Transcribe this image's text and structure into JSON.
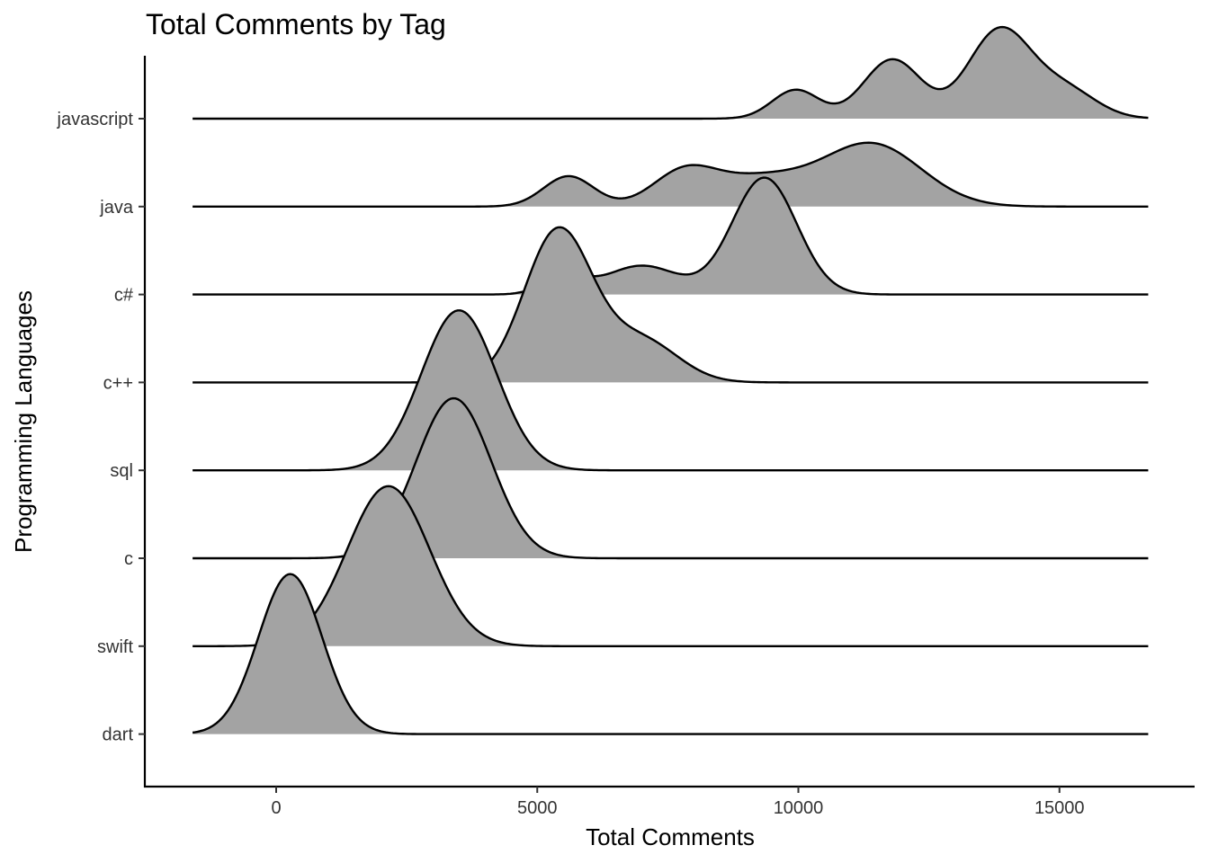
{
  "chart_data": {
    "type": "ridgeline",
    "title": "Total Comments by Tag",
    "xlabel": "Total Comments",
    "ylabel": "Programming Languages",
    "xlim": [
      -1600,
      16700
    ],
    "x_ticks": [
      0,
      5000,
      10000,
      15000
    ],
    "x_tick_labels": [
      "0",
      "5000",
      "10000",
      "15000"
    ],
    "fill_color": "#a3a3a3",
    "line_color": "#000000",
    "grid": false,
    "legend": "none",
    "series": [
      {
        "name": "dart",
        "peaks": [
          {
            "x": 270,
            "sd": 610,
            "h": 1.0
          }
        ]
      },
      {
        "name": "swift",
        "peaks": [
          {
            "x": 2150,
            "sd": 790,
            "h": 1.0
          }
        ]
      },
      {
        "name": "c",
        "peaks": [
          {
            "x": 3400,
            "sd": 720,
            "h": 1.0
          }
        ]
      },
      {
        "name": "sql",
        "peaks": [
          {
            "x": 3500,
            "sd": 720,
            "h": 1.0
          }
        ]
      },
      {
        "name": "c++",
        "peaks": [
          {
            "x": 5400,
            "sd": 650,
            "h": 0.95
          },
          {
            "x": 7000,
            "sd": 700,
            "h": 0.26
          }
        ]
      },
      {
        "name": "c#",
        "peaks": [
          {
            "x": 5500,
            "sd": 400,
            "h": 0.11
          },
          {
            "x": 7000,
            "sd": 700,
            "h": 0.18
          },
          {
            "x": 9350,
            "sd": 620,
            "h": 0.73
          }
        ]
      },
      {
        "name": "java",
        "peaks": [
          {
            "x": 5600,
            "sd": 480,
            "h": 0.19
          },
          {
            "x": 7800,
            "sd": 600,
            "h": 0.2
          },
          {
            "x": 9200,
            "sd": 900,
            "h": 0.17
          },
          {
            "x": 11400,
            "sd": 950,
            "h": 0.39
          }
        ]
      },
      {
        "name": "javascript",
        "peaks": [
          {
            "x": 9950,
            "sd": 450,
            "h": 0.18
          },
          {
            "x": 11800,
            "sd": 550,
            "h": 0.37
          },
          {
            "x": 13850,
            "sd": 600,
            "h": 0.55
          },
          {
            "x": 15100,
            "sd": 600,
            "h": 0.18
          }
        ]
      }
    ]
  }
}
